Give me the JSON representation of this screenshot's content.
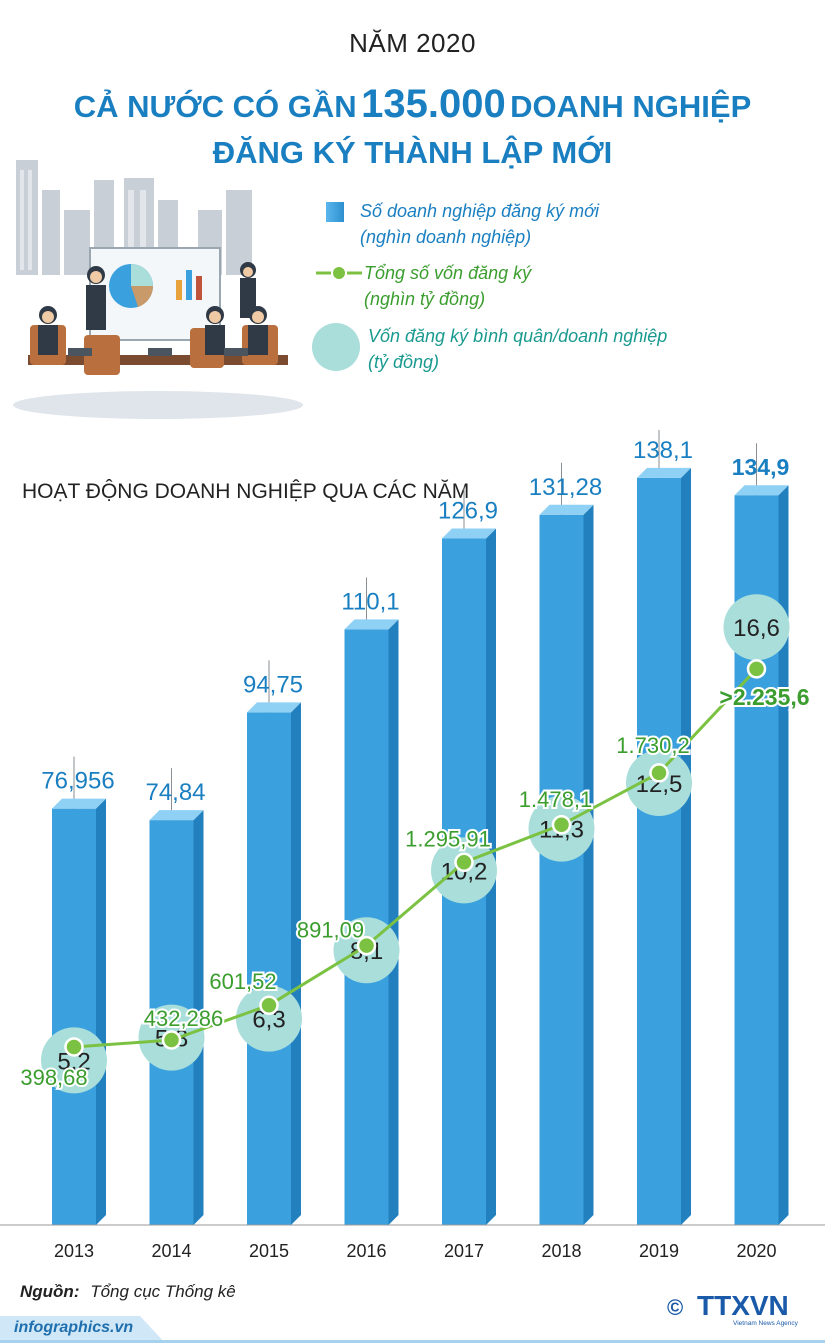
{
  "header": {
    "year_title": "NĂM 2020",
    "headline_line1_pre": "CẢ NƯỚC CÓ GẦN",
    "headline_number": "135.000",
    "headline_line1_post": "DOANH NGHIỆP",
    "headline_line2": "ĐĂNG KÝ THÀNH LẬP MỚI"
  },
  "legend": {
    "bars_line1": "Số doanh nghiệp đăng ký mới",
    "bars_line2": "(nghìn doanh nghiệp)",
    "line_line1": "Tổng số vốn đăng ký",
    "line_line2": "(nghìn tỷ đồng)",
    "circle_line1": "Vốn đăng ký bình quân/doanh nghiệp",
    "circle_line2": "(tỷ đồng)"
  },
  "section_title": "HOẠT ĐỘNG DOANH NGHIỆP QUA CÁC NĂM",
  "colors": {
    "bar": "#3aa0de",
    "bar_dark": "#2380bf",
    "bar_top": "#8fd0f5",
    "line": "#7cc242",
    "circle": "#a9dedb",
    "title_blue": "#1a7fc1",
    "label_green": "#3b9d2e"
  },
  "chart_data": {
    "type": "bar",
    "categories": [
      "2013",
      "2014",
      "2015",
      "2016",
      "2017",
      "2018",
      "2019",
      "2020"
    ],
    "series": [
      {
        "name": "Số doanh nghiệp đăng ký mới (nghìn doanh nghiệp)",
        "kind": "bar",
        "values": [
          76.956,
          74.84,
          94.75,
          110.1,
          126.9,
          131.28,
          138.1,
          134.9
        ],
        "labels": [
          "76,956",
          "74,84",
          "94,75",
          "110,1",
          "126,9",
          "131,28",
          "138,1",
          "134,9"
        ]
      },
      {
        "name": "Tổng số vốn đăng ký (nghìn tỷ đồng)",
        "kind": "line",
        "values": [
          398.68,
          432.286,
          601.52,
          891.09,
          1295.91,
          1478.1,
          1730.2,
          2235.6
        ],
        "labels": [
          "398,68",
          "432,286",
          "601,52",
          "891,09",
          "1.295,91",
          "1.478,1",
          "1.730,2",
          ">2.235,6"
        ]
      },
      {
        "name": "Vốn đăng ký bình quân/doanh nghiệp (tỷ đồng)",
        "kind": "circle",
        "values": [
          5.2,
          5.8,
          6.3,
          8.1,
          10.2,
          11.3,
          12.5,
          16.6
        ],
        "labels": [
          "5,2",
          "5,8",
          "6,3",
          "8,1",
          "10,2",
          "11,3",
          "12,5",
          "16,6"
        ]
      }
    ]
  },
  "source_label": "Nguồn:",
  "source_text": "Tổng cục Thống kê",
  "footer": "infographics.vn",
  "logo": {
    "copyright": "©",
    "brand": "TTXVN",
    "tagline": "Vietnam News Agency"
  }
}
